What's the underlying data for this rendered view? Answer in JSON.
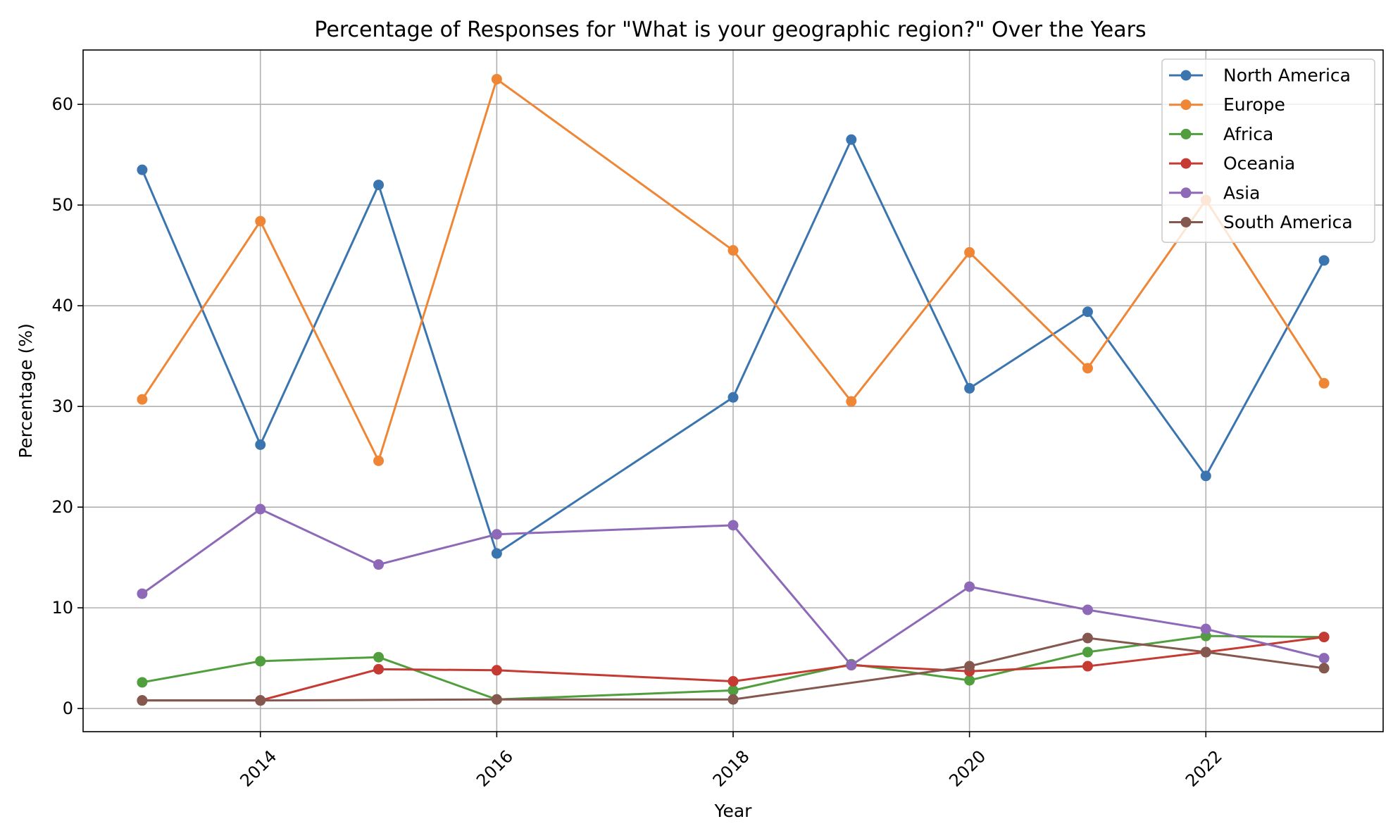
{
  "chart_data": {
    "type": "line",
    "title": "Percentage of Responses for \"What is your geographic region?\" Over the Years",
    "xlabel": "Year",
    "ylabel": "Percentage (%)",
    "x": [
      2013,
      2014,
      2015,
      2016,
      2018,
      2019,
      2020,
      2021,
      2022,
      2023
    ],
    "xlim": [
      2012.5,
      2023.5
    ],
    "ylim": [
      -2.3,
      65.4
    ],
    "xticks": [
      2014,
      2016,
      2018,
      2020,
      2022
    ],
    "yticks": [
      0,
      10,
      20,
      30,
      40,
      50,
      60
    ],
    "grid": true,
    "legend_position": "top-right",
    "series": [
      {
        "name": "North America",
        "color": "#3b75af",
        "values": [
          53.5,
          26.2,
          52.0,
          15.4,
          30.9,
          56.5,
          31.8,
          39.4,
          23.1,
          44.5
        ]
      },
      {
        "name": "Europe",
        "color": "#ef8636",
        "values": [
          30.7,
          48.4,
          24.6,
          62.5,
          45.5,
          30.5,
          45.3,
          33.8,
          50.5,
          32.3
        ]
      },
      {
        "name": "Africa",
        "color": "#519e3e",
        "values": [
          2.6,
          4.7,
          5.1,
          0.9,
          1.8,
          4.4,
          2.8,
          5.6,
          7.2,
          7.1
        ]
      },
      {
        "name": "Oceania",
        "color": "#c53a32",
        "values": [
          0.8,
          0.8,
          3.9,
          3.8,
          2.7,
          4.3,
          3.7,
          4.2,
          5.6,
          7.1
        ]
      },
      {
        "name": "Asia",
        "color": "#8d69b8",
        "values": [
          11.4,
          19.8,
          14.3,
          17.3,
          18.2,
          4.3,
          12.1,
          9.8,
          7.9,
          5.0
        ]
      },
      {
        "name": "South America",
        "color": "#84584e",
        "values": [
          0.8,
          0.8,
          null,
          0.9,
          0.9,
          null,
          4.2,
          7.0,
          5.6,
          4.0
        ]
      }
    ]
  }
}
